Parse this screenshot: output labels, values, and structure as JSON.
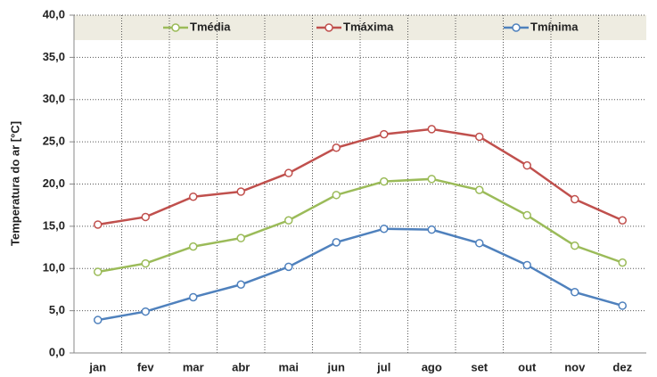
{
  "chart_data": {
    "type": "line",
    "y_label": "Temperatura do ar [°C]",
    "categories": [
      "jan",
      "fev",
      "mar",
      "abr",
      "mai",
      "jun",
      "jul",
      "ago",
      "set",
      "out",
      "nov",
      "dez"
    ],
    "series": [
      {
        "name": "Tmédia",
        "color": "#9bbb59",
        "values": [
          9.6,
          10.6,
          12.6,
          13.6,
          15.7,
          18.7,
          20.3,
          20.6,
          19.3,
          16.3,
          12.7,
          10.7
        ]
      },
      {
        "name": "Tmáxima",
        "color": "#c0504d",
        "values": [
          15.2,
          16.1,
          18.5,
          19.1,
          21.3,
          24.3,
          25.9,
          26.5,
          25.6,
          22.2,
          18.2,
          15.7
        ]
      },
      {
        "name": "Tmínima",
        "color": "#4f81bd",
        "values": [
          3.9,
          4.9,
          6.6,
          8.1,
          10.2,
          13.1,
          14.7,
          14.6,
          13.0,
          10.4,
          7.2,
          5.6
        ]
      }
    ],
    "ylim": [
      0,
      40
    ],
    "yticks": [
      {
        "value": 0,
        "label": "0,0"
      },
      {
        "value": 5,
        "label": "5,0"
      },
      {
        "value": 10,
        "label": "10,0"
      },
      {
        "value": 15,
        "label": "15,0"
      },
      {
        "value": 20,
        "label": "20,0"
      },
      {
        "value": 25,
        "label": "25,0"
      },
      {
        "value": 30,
        "label": "30,0"
      },
      {
        "value": 35,
        "label": "35,0"
      },
      {
        "value": 40,
        "label": "40,0"
      }
    ],
    "grid": true,
    "legend": "top"
  }
}
